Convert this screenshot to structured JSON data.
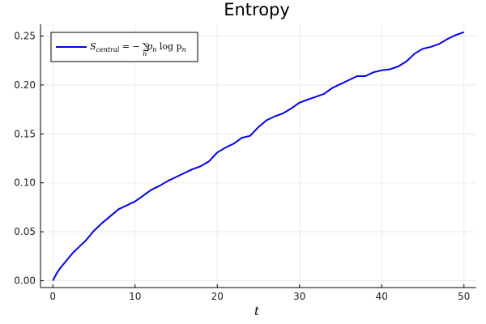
{
  "chart_data": {
    "type": "line",
    "title": "Entropy",
    "xlabel": "t",
    "ylabel": "",
    "xlim": [
      -1.5,
      51.5
    ],
    "ylim": [
      -0.007,
      0.262
    ],
    "x_ticks": [
      0,
      10,
      20,
      30,
      40,
      50
    ],
    "x_tick_labels": [
      "0",
      "10",
      "20",
      "30",
      "40",
      "50"
    ],
    "y_ticks": [
      0.0,
      0.05,
      0.1,
      0.15,
      0.2,
      0.25
    ],
    "y_tick_labels": [
      "0.00",
      "0.05",
      "0.10",
      "0.15",
      "0.20",
      "0.25"
    ],
    "grid": true,
    "legend_position": "top-left",
    "series": [
      {
        "name_parts": {
          "main": "S",
          "subscript": "central",
          "rest": " = − ∑",
          "sum_sub": "n",
          "tail1": "p",
          "tail1_sub": "n",
          "tail2": " log p",
          "tail2_sub": "n"
        },
        "color": "#0000ff",
        "x": [
          0,
          0.5,
          1,
          1.5,
          2,
          2.5,
          3,
          3.5,
          4,
          4.5,
          5,
          6,
          7,
          8,
          9,
          10,
          11,
          12,
          13,
          14,
          15,
          16,
          17,
          18,
          19,
          20,
          21,
          22,
          23,
          24,
          25,
          26,
          27,
          28,
          29,
          30,
          31,
          32,
          33,
          34,
          35,
          36,
          37,
          38,
          39,
          40,
          41,
          42,
          43,
          44,
          45,
          46,
          47,
          48,
          49,
          50
        ],
        "y": [
          0.0,
          0.008,
          0.014,
          0.019,
          0.024,
          0.029,
          0.033,
          0.037,
          0.041,
          0.046,
          0.051,
          0.059,
          0.066,
          0.073,
          0.077,
          0.081,
          0.087,
          0.093,
          0.097,
          0.102,
          0.106,
          0.11,
          0.114,
          0.117,
          0.122,
          0.131,
          0.136,
          0.14,
          0.146,
          0.148,
          0.157,
          0.164,
          0.168,
          0.171,
          0.176,
          0.182,
          0.185,
          0.188,
          0.191,
          0.197,
          0.201,
          0.205,
          0.209,
          0.209,
          0.213,
          0.215,
          0.216,
          0.219,
          0.224,
          0.232,
          0.237,
          0.239,
          0.242,
          0.247,
          0.251,
          0.254
        ]
      }
    ]
  }
}
